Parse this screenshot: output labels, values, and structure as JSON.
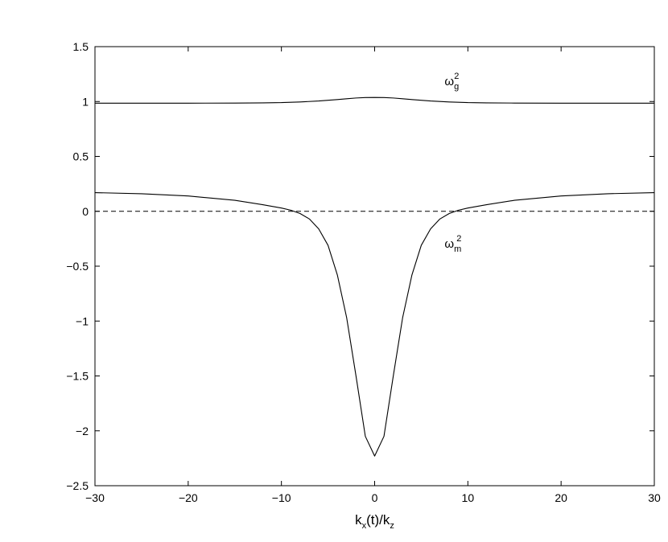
{
  "chart_data": {
    "type": "line",
    "title": "",
    "xlabel_parts": {
      "main": "k",
      "sub1": "x",
      "mid": "(t)/k",
      "sub2": "z"
    },
    "ylabel": "",
    "xlim": [
      -30,
      30
    ],
    "ylim": [
      -2.5,
      1.5
    ],
    "xticks": [
      -30,
      -20,
      -10,
      0,
      10,
      20,
      30
    ],
    "yticks": [
      -2.5,
      -2,
      -1.5,
      -1,
      -0.5,
      0,
      0.5,
      1,
      1.5
    ],
    "xtick_labels": [
      "−30",
      "−20",
      "−10",
      "0",
      "10",
      "20",
      "30"
    ],
    "ytick_labels": [
      "−2.5",
      "−2",
      "−1.5",
      "−1",
      "−0.5",
      "0",
      "0.5",
      "1",
      "1.5"
    ],
    "grid": false,
    "color": "#000000",
    "series": [
      {
        "style": "solid",
        "x": [
          -30,
          -25,
          -20,
          -15,
          -12,
          -10,
          -8,
          -6,
          -4,
          -3,
          -2,
          -1,
          0,
          1,
          2,
          3,
          4,
          6,
          8,
          10,
          12,
          15,
          20,
          25,
          30
        ],
        "y": [
          0.985,
          0.985,
          0.985,
          0.986,
          0.988,
          0.99,
          0.996,
          1.005,
          1.018,
          1.025,
          1.032,
          1.036,
          1.037,
          1.036,
          1.032,
          1.025,
          1.018,
          1.005,
          0.996,
          0.99,
          0.988,
          0.986,
          0.985,
          0.985,
          0.985
        ]
      },
      {
        "style": "solid",
        "x": [
          -30,
          -25,
          -20,
          -15,
          -12,
          -10,
          -9,
          -8,
          -7,
          -6,
          -5,
          -4,
          -3,
          -2,
          -1,
          0,
          1,
          2,
          3,
          4,
          5,
          6,
          7,
          8,
          9,
          10,
          12,
          15,
          20,
          25,
          30
        ],
        "y": [
          0.17,
          0.16,
          0.14,
          0.1,
          0.06,
          0.03,
          0.01,
          -0.02,
          -0.07,
          -0.16,
          -0.31,
          -0.58,
          -0.97,
          -1.5,
          -2.05,
          -2.23,
          -2.05,
          -1.5,
          -0.97,
          -0.58,
          -0.31,
          -0.16,
          -0.07,
          -0.02,
          0.01,
          0.03,
          0.06,
          0.1,
          0.14,
          0.16,
          0.17
        ]
      },
      {
        "style": "dashed",
        "x": [
          -30,
          30
        ],
        "y": [
          0,
          0
        ]
      }
    ],
    "annotations": [
      {
        "main": "ω",
        "sub": "g",
        "sup": "2",
        "x": 7.5,
        "y": 1.15
      },
      {
        "main": "ω",
        "sub": "m",
        "sup": "2",
        "x": 7.5,
        "y": -0.33
      }
    ]
  }
}
